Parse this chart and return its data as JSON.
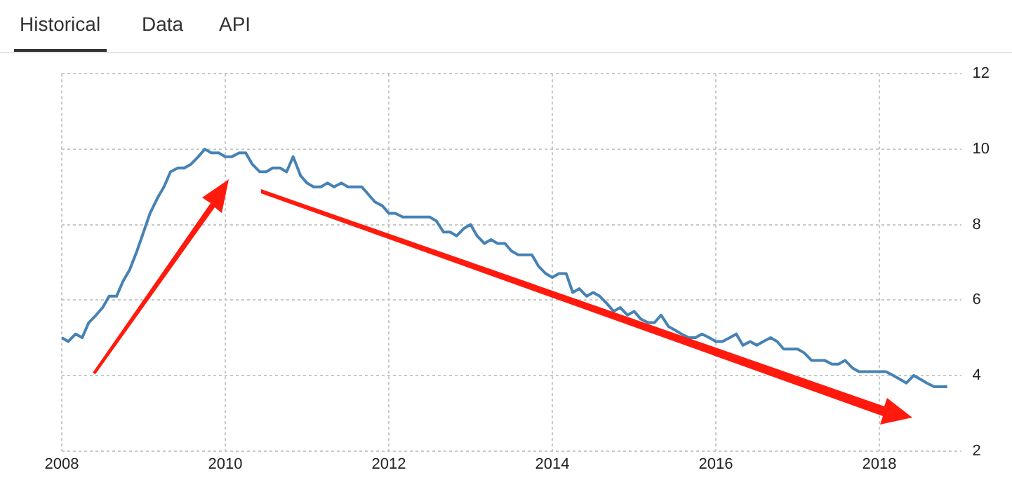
{
  "chart_data": {
    "type": "line",
    "annotations": [
      "Historical",
      "Data",
      "API"
    ],
    "x": [
      2008.0,
      2008.08,
      2008.17,
      2008.25,
      2008.33,
      2008.42,
      2008.5,
      2008.58,
      2008.67,
      2008.75,
      2008.83,
      2008.92,
      2009.0,
      2009.08,
      2009.17,
      2009.25,
      2009.33,
      2009.42,
      2009.5,
      2009.58,
      2009.67,
      2009.75,
      2009.83,
      2009.92,
      2010.0,
      2010.08,
      2010.17,
      2010.25,
      2010.33,
      2010.42,
      2010.5,
      2010.58,
      2010.67,
      2010.75,
      2010.83,
      2010.92,
      2011.0,
      2011.08,
      2011.17,
      2011.25,
      2011.33,
      2011.42,
      2011.5,
      2011.58,
      2011.67,
      2011.75,
      2011.83,
      2011.92,
      2012.0,
      2012.08,
      2012.17,
      2012.25,
      2012.33,
      2012.42,
      2012.5,
      2012.58,
      2012.67,
      2012.75,
      2012.83,
      2012.92,
      2013.0,
      2013.08,
      2013.17,
      2013.25,
      2013.33,
      2013.42,
      2013.5,
      2013.58,
      2013.67,
      2013.75,
      2013.83,
      2013.92,
      2014.0,
      2014.08,
      2014.17,
      2014.25,
      2014.33,
      2014.42,
      2014.5,
      2014.58,
      2014.67,
      2014.75,
      2014.83,
      2014.92,
      2015.0,
      2015.08,
      2015.17,
      2015.25,
      2015.33,
      2015.42,
      2015.5,
      2015.58,
      2015.67,
      2015.75,
      2015.83,
      2015.92,
      2016.0,
      2016.08,
      2016.17,
      2016.25,
      2016.33,
      2016.42,
      2016.5,
      2016.58,
      2016.67,
      2016.75,
      2016.83,
      2016.92,
      2017.0,
      2017.08,
      2017.17,
      2017.25,
      2017.33,
      2017.42,
      2017.5,
      2017.58,
      2017.67,
      2017.75,
      2017.83,
      2017.92,
      2018.0,
      2018.08,
      2018.17,
      2018.25,
      2018.33,
      2018.42,
      2018.5,
      2018.58,
      2018.67,
      2018.75,
      2018.83
    ],
    "series": [
      {
        "color": "#4682b4",
        "values": [
          5.0,
          4.9,
          5.1,
          5.0,
          5.4,
          5.6,
          5.8,
          6.1,
          6.1,
          6.5,
          6.8,
          7.3,
          7.8,
          8.3,
          8.7,
          9.0,
          9.4,
          9.5,
          9.5,
          9.6,
          9.8,
          10.0,
          9.9,
          9.9,
          9.8,
          9.8,
          9.9,
          9.9,
          9.6,
          9.4,
          9.4,
          9.5,
          9.5,
          9.4,
          9.8,
          9.3,
          9.1,
          9.0,
          9.0,
          9.1,
          9.0,
          9.1,
          9.0,
          9.0,
          9.0,
          8.8,
          8.6,
          8.5,
          8.3,
          8.3,
          8.2,
          8.2,
          8.2,
          8.2,
          8.2,
          8.1,
          7.8,
          7.8,
          7.7,
          7.9,
          8.0,
          7.7,
          7.5,
          7.6,
          7.5,
          7.5,
          7.3,
          7.2,
          7.2,
          7.2,
          6.9,
          6.7,
          6.6,
          6.7,
          6.7,
          6.2,
          6.3,
          6.1,
          6.2,
          6.1,
          5.9,
          5.7,
          5.8,
          5.6,
          5.7,
          5.5,
          5.4,
          5.4,
          5.6,
          5.3,
          5.2,
          5.1,
          5.0,
          5.0,
          5.1,
          5.0,
          4.9,
          4.9,
          5.0,
          5.1,
          4.8,
          4.9,
          4.8,
          4.9,
          5.0,
          4.9,
          4.7,
          4.7,
          4.7,
          4.6,
          4.4,
          4.4,
          4.4,
          4.3,
          4.3,
          4.4,
          4.2,
          4.1,
          4.1,
          4.1,
          4.1,
          4.1,
          4.0,
          3.9,
          3.8,
          4.0,
          3.9,
          3.8,
          3.7,
          3.7,
          3.7
        ]
      }
    ],
    "xlim": [
      2008,
      2019
    ],
    "ylim": [
      2,
      12
    ],
    "xticks": [
      2008,
      2010,
      2012,
      2014,
      2016,
      2018
    ],
    "yticks": [
      2,
      4,
      6,
      8,
      10,
      12
    ],
    "grid": true,
    "marker": "none",
    "line_style": "solid"
  }
}
